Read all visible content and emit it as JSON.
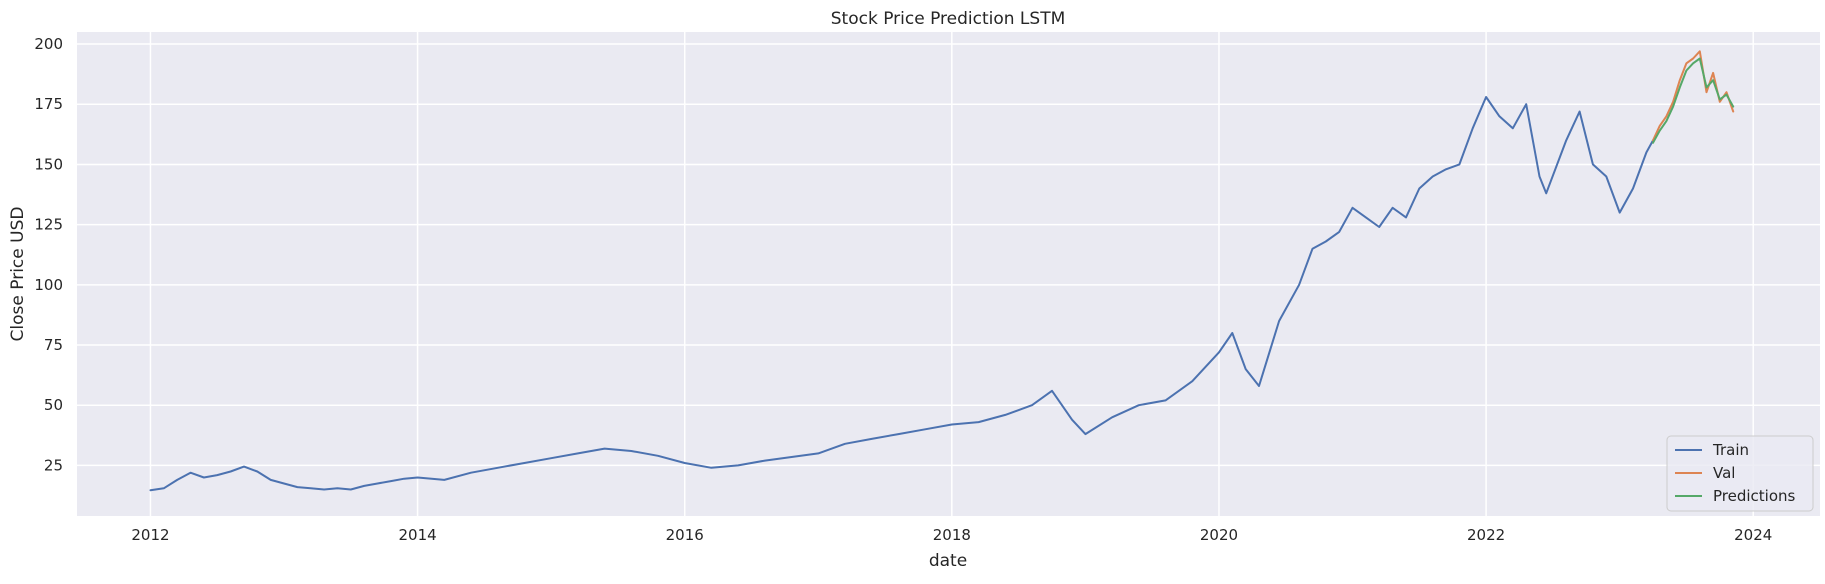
{
  "chart_data": {
    "type": "line",
    "title": "Stock Price Prediction LSTM",
    "xlabel": "date",
    "ylabel": "Close Price USD",
    "xlim": [
      2011.45,
      2024.5
    ],
    "ylim": [
      4,
      205
    ],
    "x_ticks": [
      2012,
      2014,
      2016,
      2018,
      2020,
      2022,
      2024
    ],
    "x_tick_labels": [
      "2012",
      "2014",
      "2016",
      "2018",
      "2020",
      "2022",
      "2024"
    ],
    "y_ticks": [
      25,
      50,
      75,
      100,
      125,
      150,
      175,
      200
    ],
    "y_tick_labels": [
      "25",
      "50",
      "75",
      "100",
      "125",
      "150",
      "175",
      "200"
    ],
    "grid": true,
    "legend_position": "bottom-right",
    "series": [
      {
        "name": "Train",
        "color": "#4c72b0",
        "x": [
          2012.0,
          2012.1,
          2012.2,
          2012.3,
          2012.4,
          2012.5,
          2012.6,
          2012.7,
          2012.8,
          2012.9,
          2013.0,
          2013.1,
          2013.2,
          2013.3,
          2013.4,
          2013.5,
          2013.6,
          2013.7,
          2013.8,
          2013.9,
          2014.0,
          2014.2,
          2014.4,
          2014.6,
          2014.8,
          2015.0,
          2015.2,
          2015.4,
          2015.6,
          2015.8,
          2016.0,
          2016.2,
          2016.4,
          2016.6,
          2016.8,
          2017.0,
          2017.2,
          2017.4,
          2017.6,
          2017.8,
          2018.0,
          2018.2,
          2018.4,
          2018.6,
          2018.75,
          2018.9,
          2019.0,
          2019.2,
          2019.4,
          2019.6,
          2019.8,
          2020.0,
          2020.1,
          2020.2,
          2020.3,
          2020.45,
          2020.6,
          2020.7,
          2020.8,
          2020.9,
          2021.0,
          2021.1,
          2021.2,
          2021.3,
          2021.4,
          2021.5,
          2021.6,
          2021.7,
          2021.8,
          2021.9,
          2022.0,
          2022.1,
          2022.2,
          2022.3,
          2022.4,
          2022.45,
          2022.6,
          2022.7,
          2022.8,
          2022.9,
          2023.0,
          2023.1,
          2023.2,
          2023.25
        ],
        "y": [
          14.7,
          15.5,
          19.0,
          22.0,
          20.0,
          21.0,
          22.5,
          24.5,
          22.5,
          19.0,
          17.5,
          16.0,
          15.5,
          15.0,
          15.5,
          15.0,
          16.5,
          17.5,
          18.5,
          19.5,
          20.0,
          19.0,
          22.0,
          24.0,
          26.0,
          28.0,
          30.0,
          32.0,
          31.0,
          29.0,
          26.0,
          24.0,
          25.0,
          27.0,
          28.5,
          30.0,
          34.0,
          36.0,
          38.0,
          40.0,
          42.0,
          43.0,
          46.0,
          50.0,
          56.0,
          44.0,
          38.0,
          45.0,
          50.0,
          52.0,
          60.0,
          72.0,
          80.0,
          65.0,
          58.0,
          85.0,
          100.0,
          115.0,
          118.0,
          122.0,
          132.0,
          128.0,
          124.0,
          132.0,
          128.0,
          140.0,
          145.0,
          148.0,
          150.0,
          165.0,
          178.0,
          170.0,
          165.0,
          175.0,
          145.0,
          138.0,
          160.0,
          172.0,
          150.0,
          145.0,
          130.0,
          140.0,
          155.0,
          160.0
        ]
      },
      {
        "name": "Val",
        "color": "#dd8452",
        "x": [
          2023.25,
          2023.3,
          2023.35,
          2023.4,
          2023.45,
          2023.5,
          2023.55,
          2023.6,
          2023.65,
          2023.7,
          2023.75,
          2023.8,
          2023.85
        ],
        "y": [
          160.0,
          166.0,
          170.0,
          176.0,
          185.0,
          192.0,
          194.0,
          197.0,
          180.0,
          188.0,
          176.0,
          180.0,
          172.0
        ]
      },
      {
        "name": "Predictions",
        "color": "#55a868",
        "x": [
          2023.25,
          2023.3,
          2023.35,
          2023.4,
          2023.45,
          2023.5,
          2023.55,
          2023.6,
          2023.65,
          2023.7,
          2023.75,
          2023.8,
          2023.85
        ],
        "y": [
          159.0,
          164.0,
          168.0,
          174.0,
          182.0,
          189.0,
          192.0,
          194.0,
          182.0,
          185.0,
          177.0,
          179.0,
          174.0
        ]
      }
    ]
  }
}
